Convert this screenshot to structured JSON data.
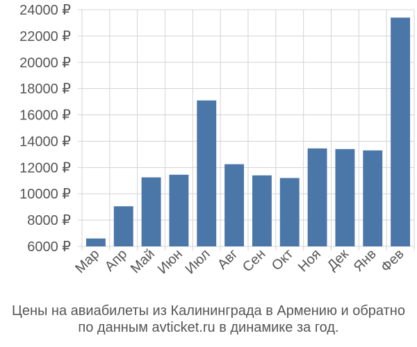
{
  "chart_data": {
    "type": "bar",
    "categories": [
      "Мар",
      "Апр",
      "Май",
      "Июн",
      "Июл",
      "Авг",
      "Сен",
      "Окт",
      "Ноя",
      "Дек",
      "Янв",
      "Фев"
    ],
    "values": [
      6600,
      9050,
      11250,
      11450,
      17100,
      12250,
      11400,
      11200,
      13450,
      13400,
      13300,
      23400
    ],
    "ylim": [
      6000,
      24000
    ],
    "yticks": [
      6000,
      8000,
      10000,
      12000,
      14000,
      16000,
      18000,
      20000,
      22000,
      24000
    ],
    "tick_suffix": " ₽",
    "xlabel": "",
    "ylabel": "",
    "grid": true,
    "bar_color": "#4a76a8",
    "grid_color": "#d3d3d3"
  },
  "caption": {
    "line1": "Цены на авиабилеты из Калининграда в Армению и обратно",
    "line2": "по данным avticket.ru в динамике за год."
  }
}
